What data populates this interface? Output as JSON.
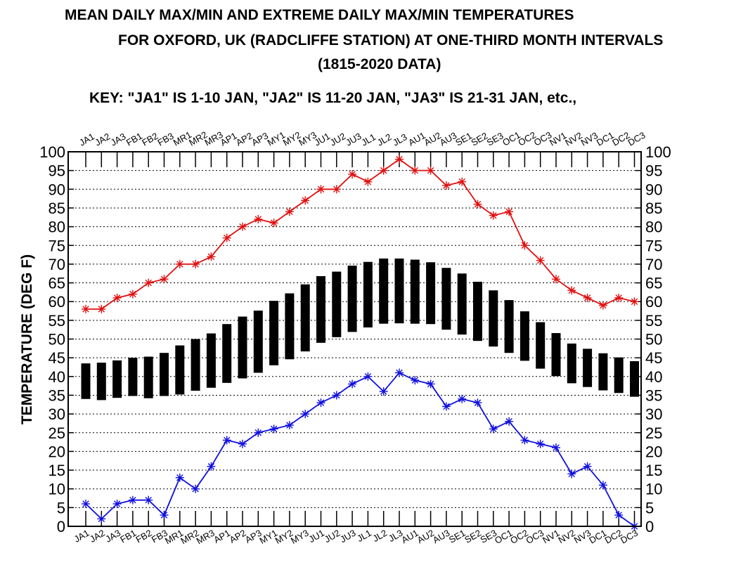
{
  "titles": {
    "line1": "MEAN DAILY MAX/MIN AND EXTREME DAILY MAX/MIN TEMPERATURES",
    "line2": "FOR OXFORD, UK (RADCLIFFE STATION) AT ONE-THIRD MONTH INTERVALS",
    "line3": "(1815-2020 DATA)",
    "key": "KEY: \"JA1\" IS 1-10 JAN, \"JA2\" IS 11-20 JAN, \"JA3\" IS 21-31 JAN, etc.,"
  },
  "chart_data": {
    "type": "line",
    "title": "MEAN DAILY MAX/MIN AND EXTREME DAILY MAX/MIN TEMPERATURES FOR OXFORD, UK (RADCLIFFE STATION) AT ONE-THIRD MONTH INTERVALS (1815-2020 DATA)",
    "ylabel": "TEMPERATURE (DEG F)",
    "xlabel": "",
    "ylim": [
      0,
      100
    ],
    "yticks": [
      0,
      5,
      10,
      15,
      20,
      25,
      30,
      35,
      40,
      45,
      50,
      55,
      60,
      65,
      70,
      75,
      80,
      85,
      90,
      95,
      100
    ],
    "grid": true,
    "categories": [
      "JA1",
      "JA2",
      "JA3",
      "FB1",
      "FB2",
      "FB3",
      "MR1",
      "MR2",
      "MR3",
      "AP1",
      "AP2",
      "AP3",
      "MY1",
      "MY2",
      "MY3",
      "JU1",
      "JU2",
      "JU3",
      "JL1",
      "JL2",
      "JL3",
      "AU1",
      "AU2",
      "AU3",
      "SE1",
      "SE2",
      "SE3",
      "OC1",
      "OC2",
      "OC3",
      "NV1",
      "NV2",
      "NV3",
      "DC1",
      "DC2",
      "DC3"
    ],
    "series": [
      {
        "color": "#e01010",
        "values": [
          58,
          58,
          61,
          62,
          65,
          66,
          70,
          70,
          72,
          77,
          80,
          82,
          81,
          84,
          87,
          90,
          90,
          94,
          92,
          95,
          98,
          95,
          95,
          91,
          92,
          86,
          83,
          84,
          75,
          71,
          66,
          63,
          61,
          59,
          61,
          60
        ]
      },
      {
        "color": "#1010e0",
        "values": [
          6,
          2,
          6,
          7,
          7,
          3,
          13,
          10,
          16,
          23,
          22,
          25,
          26,
          27,
          30,
          33,
          35,
          38,
          40,
          36,
          41,
          39,
          38,
          32,
          34,
          33,
          26,
          28,
          23,
          22,
          21,
          14,
          16,
          11,
          3,
          0
        ]
      }
    ],
    "mean_range": {
      "color": "#000000",
      "max": [
        43.5,
        43.7,
        44.3,
        45,
        45.3,
        46.3,
        48.3,
        50,
        51.5,
        54,
        56,
        57.6,
        60.2,
        62.2,
        64.6,
        66.8,
        68,
        69.6,
        70.6,
        71.5,
        71.5,
        71.2,
        70.5,
        69,
        67.5,
        65.3,
        63,
        60.4,
        57.4,
        54.5,
        51.6,
        48.8,
        47.4,
        46.2,
        45.1,
        44.1
      ],
      "min": [
        34,
        33.7,
        34.3,
        34.8,
        34.2,
        34.8,
        35.2,
        36.2,
        37,
        38.3,
        39.5,
        41,
        43,
        44.6,
        46.7,
        49,
        50.5,
        51.9,
        53.1,
        54.1,
        54.2,
        54.1,
        54,
        52.5,
        51.2,
        49.5,
        48,
        46.3,
        44.2,
        42.1,
        40.1,
        38.2,
        37.2,
        36.3,
        35.6,
        34.6
      ]
    }
  }
}
